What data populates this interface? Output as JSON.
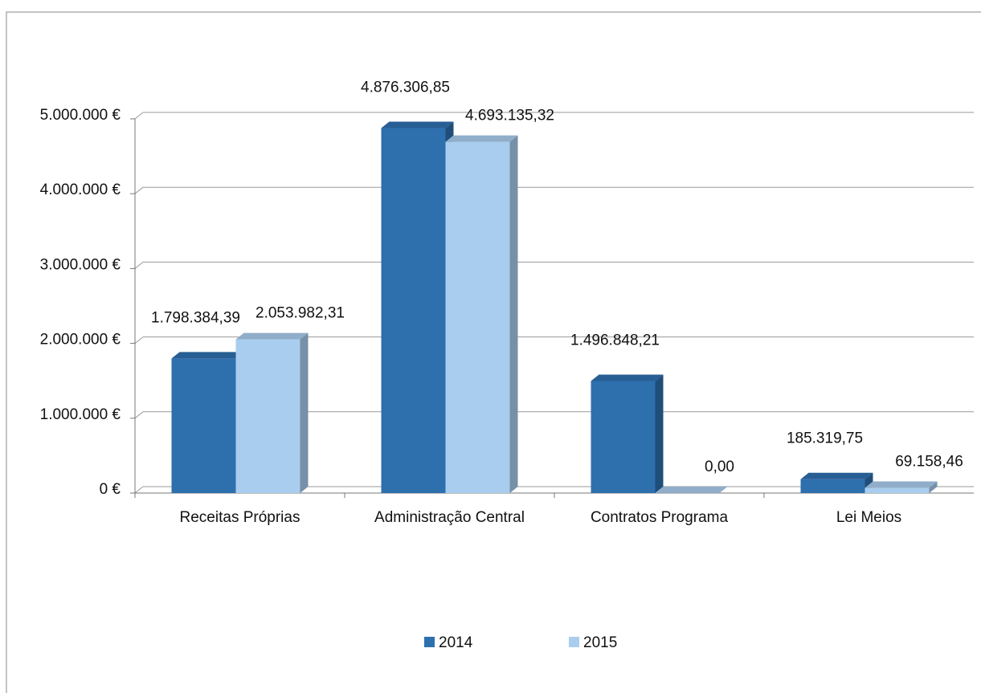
{
  "chart_data": {
    "type": "bar3d",
    "categories": [
      "Receitas Próprias",
      "Administração Central",
      "Contratos Programa",
      "Lei Meios"
    ],
    "series": [
      {
        "name": "2014",
        "color": "#2e6fae",
        "values": [
          1798384.39,
          4876306.85,
          1496848.21,
          185319.75
        ],
        "value_labels": [
          "1.798.384,39",
          "4.876.306,85",
          "1.496.848,21",
          "185.319,75"
        ]
      },
      {
        "name": "2015",
        "color": "#a9cdee",
        "values": [
          2053982.31,
          4693135.32,
          0,
          69158.46
        ],
        "value_labels": [
          "2.053.982,31",
          "4.693.135,32",
          "0,00",
          "69.158,46"
        ]
      }
    ],
    "ylim": [
      0,
      5000000
    ],
    "yticks": [
      {
        "value": 0,
        "label": "0 €"
      },
      {
        "value": 1000000,
        "label": "1.000.000 €"
      },
      {
        "value": 2000000,
        "label": "2.000.000 €"
      },
      {
        "value": 3000000,
        "label": "3.000.000 €"
      },
      {
        "value": 4000000,
        "label": "4.000.000 €"
      },
      {
        "value": 5000000,
        "label": "5.000.000 €"
      }
    ],
    "grid": true,
    "legend": "bottom"
  }
}
